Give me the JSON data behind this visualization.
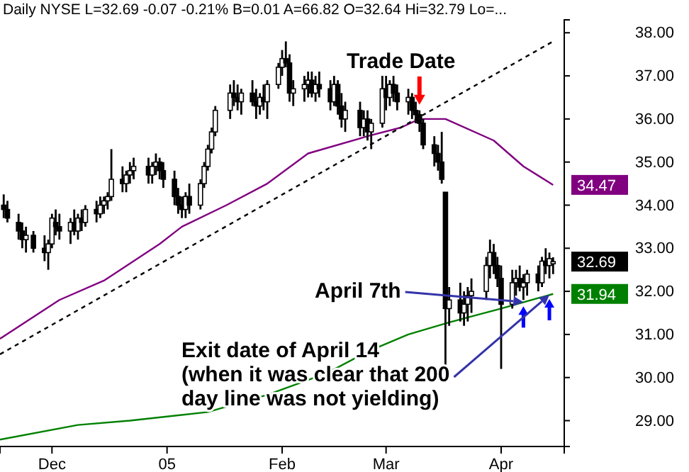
{
  "chart_data": {
    "type": "candlestick",
    "title": "Daily   NYSE   L=32.69  -0.07  -0.21%  B=0.01  A=66.82  O=32.64  Hi=32.79  Lo=...",
    "xlim": [
      "2004-11-17",
      "2005-04-18"
    ],
    "xticks": [
      {
        "value": "2004-12-01",
        "label": "Dec"
      },
      {
        "value": "2005-01-01",
        "label": "05"
      },
      {
        "value": "2005-02-01",
        "label": "Feb"
      },
      {
        "value": "2005-03-01",
        "label": "Mar"
      },
      {
        "value": "2005-04-01",
        "label": "Apr"
      }
    ],
    "ylim": [
      28.4,
      38.3
    ],
    "yticks": [
      {
        "value": 29,
        "label": "29.00"
      },
      {
        "value": 30,
        "label": "30.00"
      },
      {
        "value": 31,
        "label": "31.00"
      },
      {
        "value": 32,
        "label": "32.00"
      },
      {
        "value": 33,
        "label": "33.00"
      },
      {
        "value": 34,
        "label": "34.00"
      },
      {
        "value": 35,
        "label": "35.00"
      },
      {
        "value": 36,
        "label": "36.00"
      },
      {
        "value": 37,
        "label": "37.00"
      },
      {
        "value": 38,
        "label": "38.00"
      }
    ],
    "grid": false,
    "series": [
      {
        "type": "candlestick",
        "color": "#000000",
        "x": [
          "2004-11-18",
          "2004-11-19",
          "2004-11-22",
          "2004-11-23",
          "2004-11-24",
          "2004-11-26",
          "2004-11-29",
          "2004-11-30",
          "2004-12-01",
          "2004-12-02",
          "2004-12-03",
          "2004-12-06",
          "2004-12-07",
          "2004-12-08",
          "2004-12-09",
          "2004-12-10",
          "2004-12-13",
          "2004-12-14",
          "2004-12-15",
          "2004-12-16",
          "2004-12-17",
          "2004-12-20",
          "2004-12-21",
          "2004-12-22",
          "2004-12-23",
          "2004-12-27",
          "2004-12-28",
          "2004-12-29",
          "2004-12-30",
          "2004-12-31",
          "2005-01-03",
          "2005-01-04",
          "2005-01-05",
          "2005-01-06",
          "2005-01-07",
          "2005-01-10",
          "2005-01-11",
          "2005-01-12",
          "2005-01-13",
          "2005-01-14",
          "2005-01-18",
          "2005-01-19",
          "2005-01-20",
          "2005-01-21",
          "2005-01-24",
          "2005-01-25",
          "2005-01-26",
          "2005-01-27",
          "2005-01-28",
          "2005-01-31",
          "2005-02-01",
          "2005-02-02",
          "2005-02-03",
          "2005-02-04",
          "2005-02-07",
          "2005-02-08",
          "2005-02-09",
          "2005-02-10",
          "2005-02-11",
          "2005-02-14",
          "2005-02-15",
          "2005-02-16",
          "2005-02-17",
          "2005-02-18",
          "2005-02-22",
          "2005-02-23",
          "2005-02-24",
          "2005-02-25",
          "2005-02-28",
          "2005-03-01",
          "2005-03-02",
          "2005-03-03",
          "2005-03-04",
          "2005-03-07",
          "2005-03-08",
          "2005-03-09",
          "2005-03-10",
          "2005-03-11",
          "2005-03-14",
          "2005-03-15",
          "2005-03-16",
          "2005-03-17",
          "2005-03-18",
          "2005-03-21",
          "2005-03-22",
          "2005-03-23",
          "2005-03-24",
          "2005-03-28",
          "2005-03-29",
          "2005-03-30",
          "2005-03-31",
          "2005-04-01",
          "2005-04-04",
          "2005-04-05",
          "2005-04-06",
          "2005-04-07",
          "2005-04-08",
          "2005-04-11",
          "2005-04-12",
          "2005-04-13",
          "2005-04-14",
          "2005-04-15"
        ],
        "ohlc": [
          [
            34.0,
            34.25,
            33.7,
            33.9
          ],
          [
            33.9,
            34.1,
            33.6,
            33.7
          ],
          [
            33.6,
            33.8,
            33.2,
            33.4
          ],
          [
            33.4,
            33.6,
            33.0,
            33.2
          ],
          [
            33.2,
            33.5,
            32.9,
            33.3
          ],
          [
            33.3,
            33.4,
            32.9,
            33.0
          ],
          [
            33.0,
            33.3,
            32.7,
            32.9
          ],
          [
            32.9,
            33.2,
            32.5,
            33.1
          ],
          [
            33.1,
            33.8,
            33.0,
            33.7
          ],
          [
            33.6,
            33.9,
            33.3,
            33.5
          ],
          [
            33.5,
            33.8,
            33.2,
            33.4
          ],
          [
            33.4,
            33.7,
            33.1,
            33.6
          ],
          [
            33.6,
            33.9,
            33.3,
            33.4
          ],
          [
            33.4,
            33.8,
            33.2,
            33.7
          ],
          [
            33.7,
            33.9,
            33.4,
            33.6
          ],
          [
            33.6,
            34.0,
            33.5,
            33.9
          ],
          [
            33.9,
            34.1,
            33.6,
            33.8
          ],
          [
            33.8,
            34.2,
            33.7,
            34.0
          ],
          [
            34.0,
            34.2,
            33.8,
            34.1
          ],
          [
            34.1,
            34.3,
            33.9,
            34.2
          ],
          [
            34.2,
            35.3,
            34.1,
            34.6
          ],
          [
            34.6,
            34.9,
            34.3,
            34.5
          ],
          [
            34.5,
            34.8,
            34.3,
            34.7
          ],
          [
            34.7,
            35.0,
            34.5,
            34.8
          ],
          [
            34.8,
            35.1,
            34.6,
            34.9
          ],
          [
            34.9,
            35.1,
            34.5,
            34.7
          ],
          [
            34.7,
            35.0,
            34.5,
            34.9
          ],
          [
            34.9,
            35.2,
            34.7,
            35.0
          ],
          [
            35.0,
            35.1,
            34.6,
            34.8
          ],
          [
            34.8,
            35.0,
            34.4,
            34.6
          ],
          [
            34.6,
            34.8,
            34.0,
            34.2
          ],
          [
            34.2,
            34.4,
            33.8,
            34.0
          ],
          [
            34.0,
            34.2,
            33.7,
            33.9
          ],
          [
            33.9,
            34.3,
            33.7,
            34.2
          ],
          [
            34.2,
            34.5,
            33.8,
            34.0
          ],
          [
            34.0,
            34.6,
            33.9,
            34.5
          ],
          [
            34.5,
            35.0,
            34.4,
            34.9
          ],
          [
            34.9,
            35.4,
            34.8,
            35.3
          ],
          [
            35.3,
            35.8,
            35.2,
            35.7
          ],
          [
            35.7,
            36.3,
            35.6,
            36.2
          ],
          [
            36.2,
            36.8,
            36.0,
            36.6
          ],
          [
            36.6,
            36.9,
            36.3,
            36.5
          ],
          [
            36.5,
            36.8,
            36.2,
            36.4
          ],
          [
            36.4,
            36.7,
            36.1,
            36.6
          ],
          [
            36.6,
            36.9,
            36.3,
            36.4
          ],
          [
            36.4,
            36.7,
            36.0,
            36.3
          ],
          [
            36.3,
            36.6,
            36.1,
            36.5
          ],
          [
            36.5,
            36.8,
            36.2,
            36.4
          ],
          [
            36.4,
            36.9,
            36.0,
            36.8
          ],
          [
            36.8,
            37.3,
            36.7,
            37.2
          ],
          [
            37.2,
            37.6,
            37.0,
            37.4
          ],
          [
            37.4,
            37.8,
            37.2,
            37.3
          ],
          [
            37.3,
            37.5,
            36.4,
            36.6
          ],
          [
            36.6,
            36.9,
            36.3,
            36.7
          ],
          [
            36.7,
            37.0,
            36.4,
            36.8
          ],
          [
            36.8,
            37.1,
            36.5,
            36.9
          ],
          [
            36.9,
            37.1,
            36.5,
            36.6
          ],
          [
            36.6,
            37.0,
            36.4,
            36.8
          ],
          [
            36.8,
            37.1,
            36.5,
            36.7
          ],
          [
            36.7,
            36.9,
            36.2,
            36.4
          ],
          [
            36.4,
            37.0,
            36.3,
            36.8
          ],
          [
            36.8,
            36.9,
            36.1,
            36.3
          ],
          [
            36.3,
            36.6,
            35.8,
            36.0
          ],
          [
            36.0,
            36.4,
            35.7,
            36.2
          ],
          [
            36.2,
            36.4,
            35.6,
            35.8
          ],
          [
            35.8,
            36.2,
            35.6,
            36.0
          ],
          [
            36.0,
            36.2,
            35.5,
            35.7
          ],
          [
            35.7,
            36.0,
            35.3,
            35.9
          ],
          [
            35.9,
            37.0,
            35.8,
            36.7
          ],
          [
            36.7,
            37.0,
            36.2,
            36.5
          ],
          [
            36.5,
            36.9,
            36.3,
            36.8
          ],
          [
            36.8,
            37.0,
            36.4,
            36.6
          ],
          [
            36.6,
            36.8,
            36.2,
            36.4
          ],
          [
            36.4,
            36.7,
            36.1,
            36.5
          ],
          [
            36.5,
            36.6,
            36.0,
            36.2
          ],
          [
            36.2,
            36.4,
            35.9,
            36.1
          ],
          [
            36.1,
            36.2,
            35.7,
            35.9
          ],
          [
            35.9,
            36.0,
            35.3,
            35.4
          ],
          [
            35.4,
            35.6,
            34.9,
            35.2
          ],
          [
            35.2,
            35.4,
            34.8,
            35.0
          ],
          [
            35.0,
            35.7,
            34.5,
            34.6
          ],
          [
            34.3,
            34.3,
            30.0,
            31.6
          ],
          [
            31.6,
            32.1,
            31.2,
            31.8
          ],
          [
            31.8,
            32.2,
            31.3,
            31.5
          ],
          [
            31.5,
            32.0,
            31.2,
            31.7
          ],
          [
            31.7,
            32.1,
            31.3,
            31.9
          ],
          [
            31.9,
            32.3,
            31.5,
            32.0
          ],
          [
            32.0,
            32.8,
            31.8,
            32.6
          ],
          [
            32.6,
            33.2,
            32.3,
            32.9
          ],
          [
            32.9,
            33.1,
            32.4,
            32.6
          ],
          [
            32.6,
            32.8,
            32.1,
            32.3
          ],
          [
            32.3,
            32.6,
            30.2,
            31.7
          ],
          [
            31.7,
            32.5,
            31.6,
            32.2
          ],
          [
            32.2,
            32.5,
            31.9,
            32.3
          ],
          [
            32.3,
            32.6,
            32.0,
            32.1
          ],
          [
            32.1,
            32.4,
            31.8,
            32.2
          ],
          [
            32.2,
            32.5,
            31.9,
            32.4
          ],
          [
            32.4,
            32.6,
            32.0,
            32.2
          ],
          [
            32.2,
            32.8,
            32.1,
            32.7
          ],
          [
            32.7,
            33.0,
            32.4,
            32.6
          ],
          [
            32.6,
            32.9,
            32.3,
            32.76
          ],
          [
            32.64,
            32.79,
            32.4,
            32.69
          ]
        ],
        "value_labels": [
          null,
          null,
          null,
          null,
          null,
          null,
          null,
          null,
          null,
          null,
          null,
          null,
          null,
          null,
          null,
          null,
          null,
          null,
          null,
          null,
          null,
          null,
          null,
          null,
          null,
          null,
          null,
          null,
          null,
          null,
          null,
          null,
          null,
          null,
          null,
          null,
          null,
          null,
          null,
          null,
          null,
          null,
          null,
          null,
          null,
          null,
          null,
          null,
          null,
          null,
          null,
          null,
          null,
          null,
          null,
          null,
          null,
          null,
          null,
          null,
          null,
          null,
          null,
          null,
          null,
          null,
          null,
          null,
          null,
          null,
          null,
          null,
          null,
          null,
          null,
          null,
          null,
          null,
          null,
          null,
          null,
          null,
          null,
          null,
          null,
          null,
          null,
          null,
          null,
          null,
          null,
          null,
          null,
          null,
          null,
          null,
          null,
          null,
          null,
          null,
          null,
          "32.69"
        ]
      },
      {
        "type": "line",
        "color": "#800080",
        "x": [
          "2004-11-17",
          "2004-12-03",
          "2004-12-15",
          "2004-12-30",
          "2005-01-05",
          "2005-01-17",
          "2005-01-28",
          "2005-02-08",
          "2005-02-24",
          "2005-03-05",
          "2005-03-10",
          "2005-03-17",
          "2005-03-30",
          "2005-04-07",
          "2005-04-15"
        ],
        "values": [
          30.9,
          31.8,
          32.25,
          33.1,
          33.5,
          34.0,
          34.5,
          35.2,
          35.6,
          35.8,
          36.0,
          36.0,
          35.5,
          34.9,
          34.47
        ],
        "value_labels": [
          null,
          null,
          null,
          null,
          null,
          null,
          null,
          null,
          null,
          null,
          null,
          null,
          null,
          null,
          "34.47"
        ]
      },
      {
        "type": "line",
        "color": "#008000",
        "x": [
          "2004-11-17",
          "2004-12-08",
          "2004-12-22",
          "2005-01-12",
          "2005-01-28",
          "2005-02-13",
          "2005-02-24",
          "2005-03-07",
          "2005-03-18",
          "2005-04-01",
          "2005-04-15"
        ],
        "values": [
          28.56,
          28.9,
          29.0,
          29.2,
          29.6,
          30.1,
          30.6,
          31.0,
          31.28,
          31.6,
          31.94
        ],
        "value_labels": [
          null,
          null,
          null,
          null,
          null,
          null,
          null,
          null,
          null,
          null,
          "31.94"
        ]
      },
      {
        "type": "line",
        "color": "#000000",
        "line_style": "dashed",
        "x": [
          "2004-11-17",
          "2005-04-15"
        ],
        "values": [
          30.54,
          37.8
        ]
      }
    ],
    "annotations": [
      {
        "text": "Trade Date",
        "x": "2005-03-10",
        "y": 36.0
      },
      {
        "text": "April 7th",
        "x": "2005-04-07",
        "y": 31.75
      },
      {
        "text": "Exit date of April 14\n(when it was clear that 200\nday line was not yielding)",
        "x": "2005-04-14",
        "y": 31.92
      }
    ]
  }
}
